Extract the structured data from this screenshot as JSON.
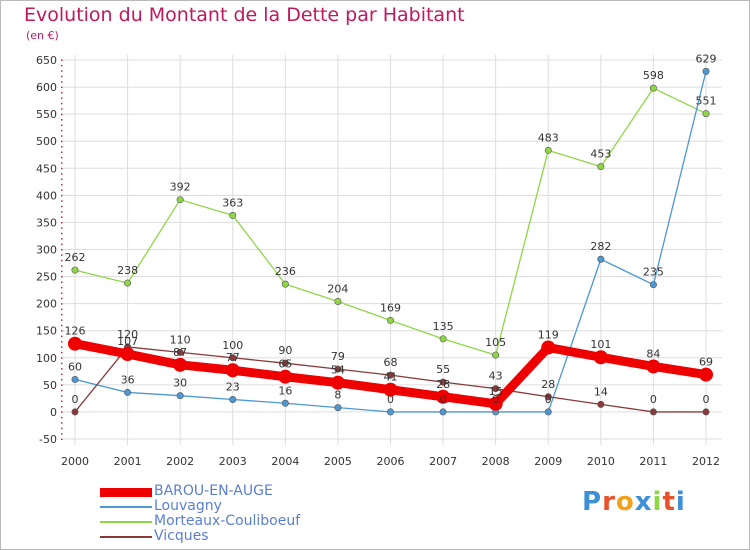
{
  "header": {
    "title": "Evolution du Montant de la Dette par Habitant",
    "subtitle": "(en €)"
  },
  "logo": {
    "text": "Proxiti"
  },
  "colors": {
    "title": "#c0185e",
    "axis_text": "#333333",
    "grid": "#dddddd",
    "legend_text": "#5b7fd0"
  },
  "chart_data": {
    "type": "line",
    "title": "Evolution du Montant de la Dette par Habitant",
    "ylabel": "(en €)",
    "xlabel": "",
    "x": [
      "2000",
      "2001",
      "2002",
      "2003",
      "2004",
      "2005",
      "2006",
      "2007",
      "2008",
      "2009",
      "2010",
      "2011",
      "2012"
    ],
    "ylim": [
      -50,
      650
    ],
    "yticks": [
      -50,
      0,
      50,
      100,
      150,
      200,
      250,
      300,
      350,
      400,
      450,
      500,
      550,
      600,
      650
    ],
    "grid": true,
    "legend_position": "bottom-left",
    "series": [
      {
        "name": "BAROU-EN-AUGE",
        "color": "#ee0000",
        "values": [
          126,
          107,
          87,
          77,
          65,
          54,
          41,
          28,
          15,
          119,
          101,
          84,
          69
        ],
        "labels": [
          "126",
          "107",
          "87",
          "77",
          "65",
          "54",
          "41",
          "28",
          "15",
          "119",
          "101",
          "84",
          "69"
        ]
      },
      {
        "name": "Louvagny",
        "color": "#4d97d2",
        "values": [
          60,
          36,
          30,
          23,
          16,
          8,
          0,
          0,
          0,
          0,
          282,
          235,
          629
        ],
        "labels": [
          "60",
          "36",
          "30",
          "23",
          "16",
          "8",
          "0",
          "0",
          "0",
          "0",
          "282",
          "235",
          "629"
        ]
      },
      {
        "name": "Morteaux-Couliboeuf",
        "color": "#8fd645",
        "values": [
          262,
          238,
          392,
          363,
          236,
          204,
          169,
          135,
          105,
          483,
          453,
          598,
          551
        ],
        "labels": [
          "262",
          "238",
          "392",
          "363",
          "236",
          "204",
          "169",
          "135",
          "105",
          "483",
          "453",
          "598",
          "551"
        ]
      },
      {
        "name": "Vicques",
        "color": "#8a3a3a",
        "values": [
          0,
          120,
          110,
          100,
          90,
          79,
          68,
          55,
          43,
          28,
          14,
          0,
          0
        ],
        "labels": [
          "0",
          "120",
          "110",
          "100",
          "90",
          "79",
          "68",
          "55",
          "43",
          "28",
          "14",
          "0",
          "0"
        ]
      }
    ]
  }
}
